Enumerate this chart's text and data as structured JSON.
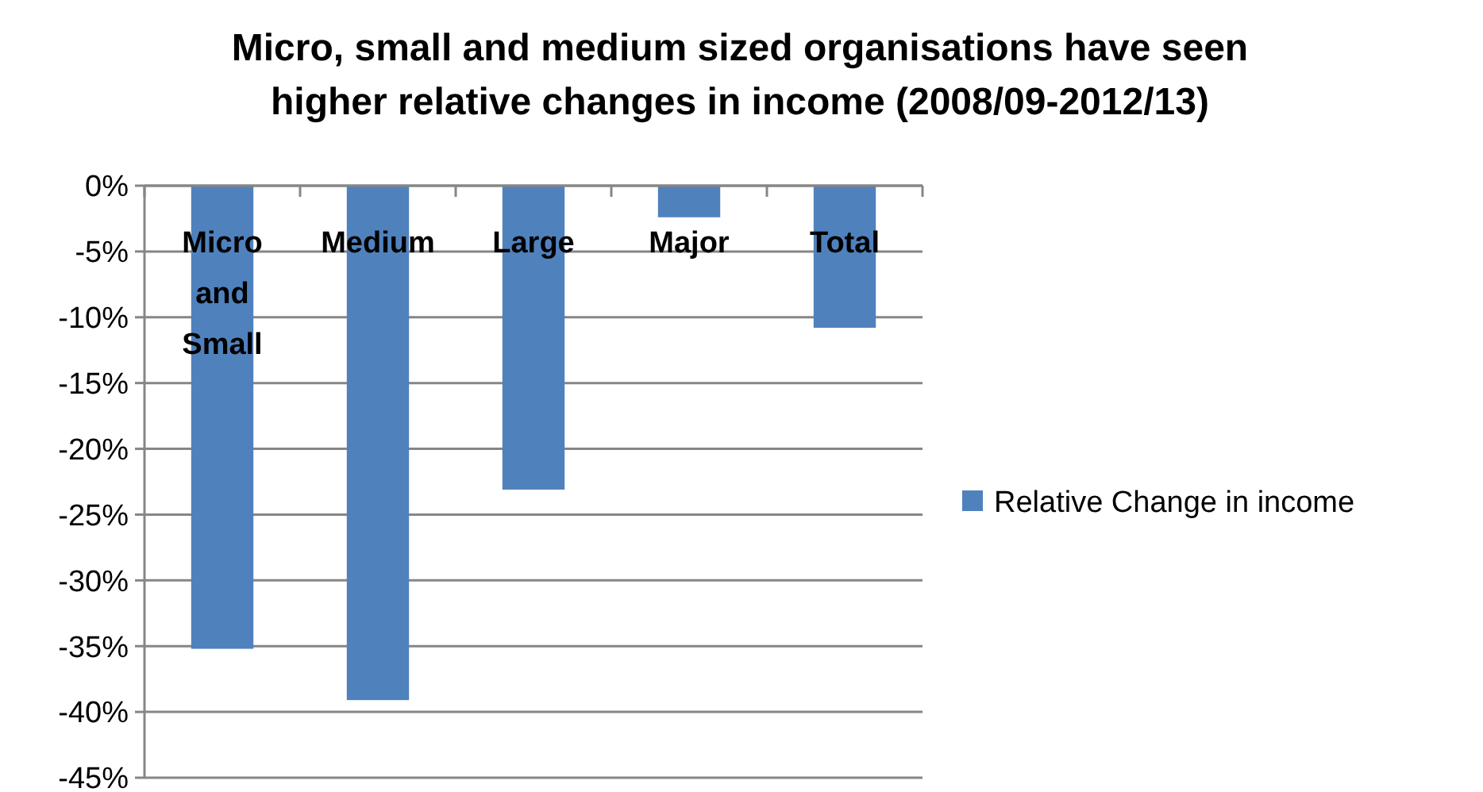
{
  "chart_data": {
    "type": "bar",
    "title": "Micro, small and medium sized organisations have  seen higher relative changes in income (2008/09-2012/13)",
    "categories": [
      "Micro and Small",
      "Medium",
      "Large",
      "Major",
      "Total"
    ],
    "series": [
      {
        "name": "Relative Change in income",
        "color": "#4f81bd",
        "values": [
          -35.2,
          -39.1,
          -23.1,
          -2.4,
          -10.8
        ]
      }
    ],
    "ylim": [
      -45,
      0
    ],
    "yticks": [
      {
        "value": 0,
        "label": "0%"
      },
      {
        "value": -5,
        "label": "-5%"
      },
      {
        "value": -10,
        "label": "-10%"
      },
      {
        "value": -15,
        "label": "-15%"
      },
      {
        "value": -20,
        "label": "-20%"
      },
      {
        "value": -25,
        "label": "-25%"
      },
      {
        "value": -30,
        "label": "-30%"
      },
      {
        "value": -35,
        "label": "-35%"
      },
      {
        "value": -40,
        "label": "-40%"
      },
      {
        "value": -45,
        "label": "-45%"
      }
    ],
    "grid": "y",
    "legend": "right"
  }
}
